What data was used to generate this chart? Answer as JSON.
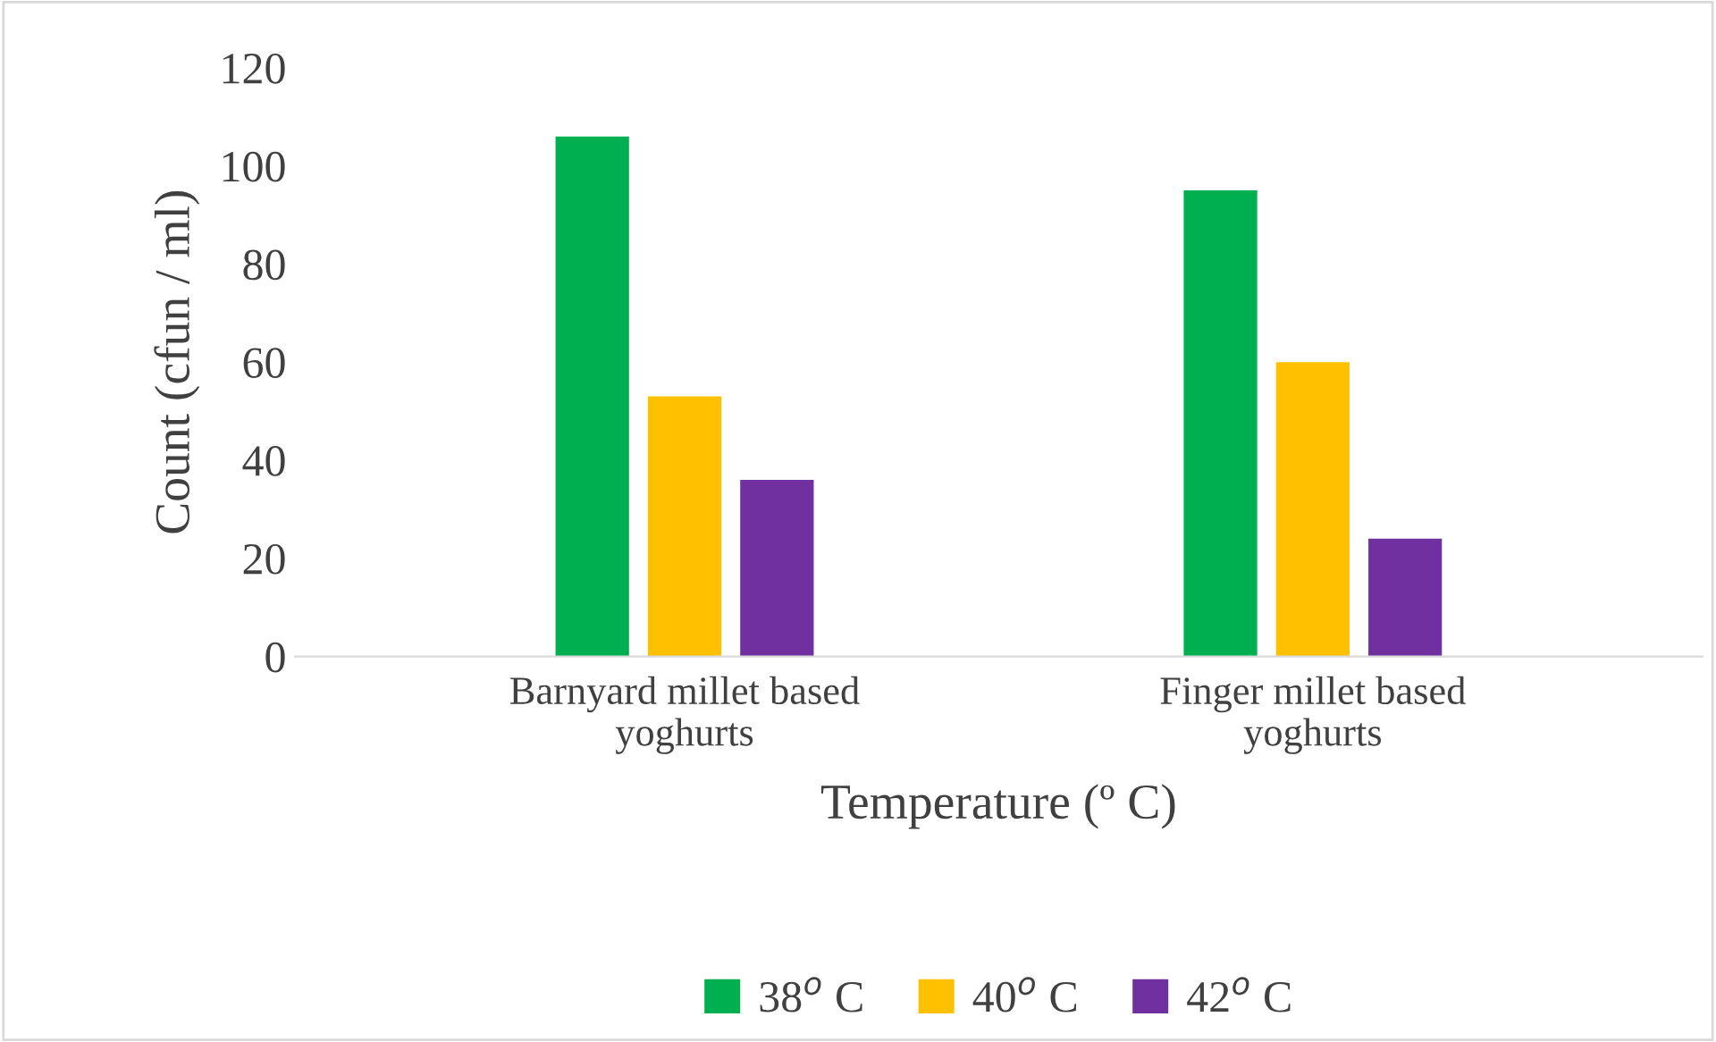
{
  "chart_data": {
    "type": "bar",
    "xlabel": "Temperature (º C)",
    "ylabel": "Count (cfun / ml)",
    "categories": [
      "Barnyard millet based\nyoghurts",
      "Finger millet based\nyoghurts"
    ],
    "series": [
      {
        "name": "38$^{o}$ C",
        "color": "#00b050",
        "values": [
          106,
          95
        ]
      },
      {
        "name": "40$^{o}$ C",
        "color": "#ffc000",
        "values": [
          53,
          60
        ]
      },
      {
        "name": "42$^{o}$ C",
        "color": "#7030a0",
        "values": [
          36,
          24
        ]
      }
    ],
    "ylim": [
      0,
      120
    ],
    "yticks": [
      0,
      20,
      40,
      60,
      80,
      100,
      120
    ],
    "grid": false,
    "legend": "bottom"
  }
}
